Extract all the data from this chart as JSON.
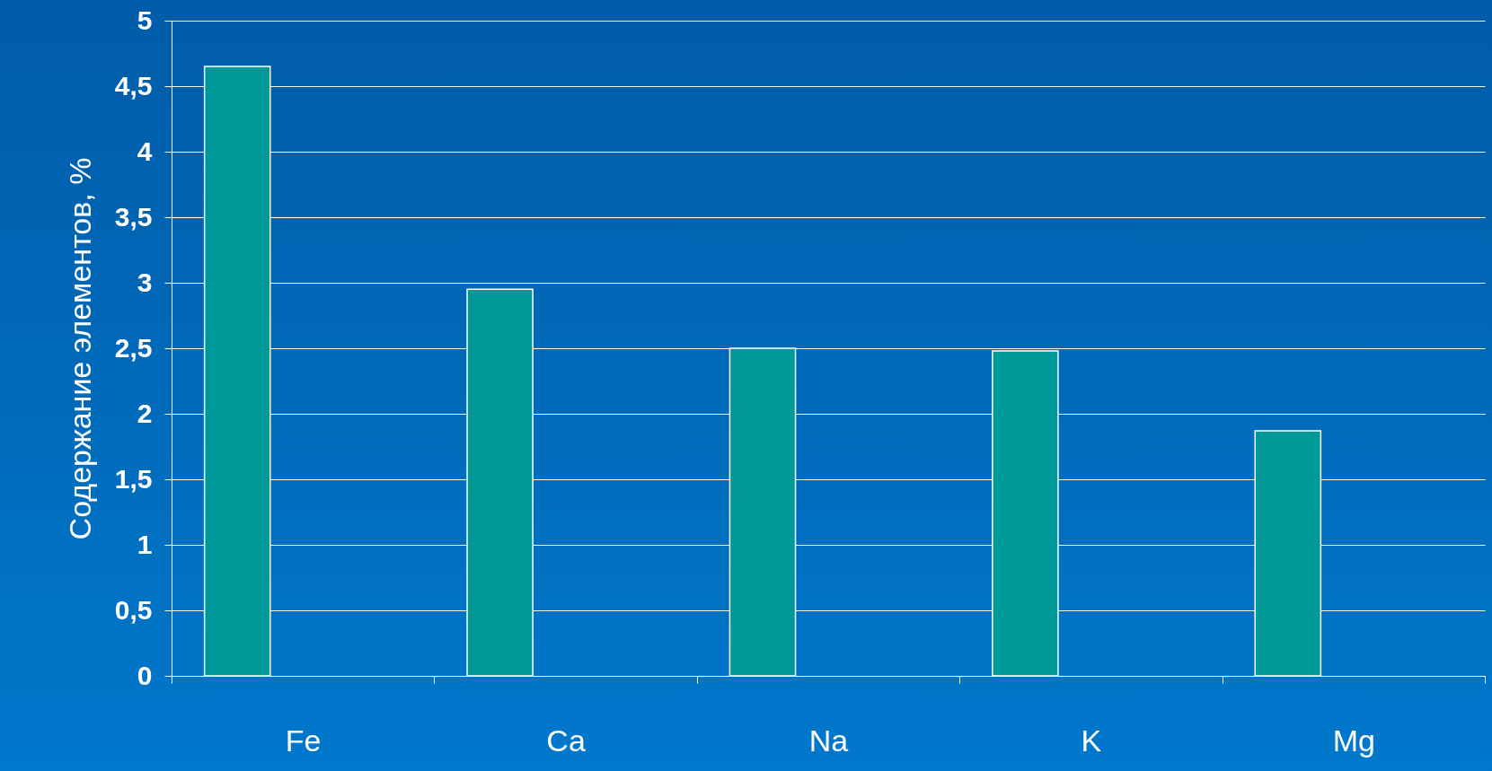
{
  "chart_data": {
    "type": "bar",
    "ylabel": "Содержание элементов, %",
    "categories": [
      "Fe",
      "Ca",
      "Na",
      "K",
      "Mg"
    ],
    "values": [
      4.65,
      2.95,
      2.5,
      2.48,
      1.87
    ],
    "color": "#009999",
    "ylim": [
      0,
      5
    ],
    "yticks": [
      0,
      {
        "value": 0.5,
        "label": "0,5"
      },
      1,
      {
        "value": 1.5,
        "label": "1,5"
      },
      2,
      {
        "value": 2.5,
        "label": "2,5"
      },
      3,
      {
        "value": 3.5,
        "label": "3,5"
      },
      4,
      {
        "value": 4.5,
        "label": "4,5"
      },
      5
    ],
    "grid": "y"
  }
}
